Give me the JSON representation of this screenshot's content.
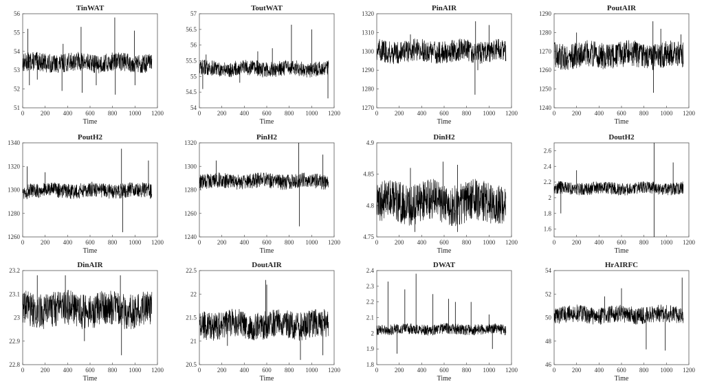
{
  "chart_data": [
    {
      "type": "line",
      "title": "TinWAT",
      "xlabel": "Time",
      "xlim": [
        0,
        1200
      ],
      "ylim": [
        51,
        56
      ],
      "xticks": [
        "0",
        "200",
        "400",
        "600",
        "800",
        "1000",
        "1200"
      ],
      "yticks": [
        "51",
        "52",
        "53",
        "54",
        "55",
        "56"
      ],
      "series": [
        {
          "base": 53.5,
          "x_end": 1150,
          "band_low": 52.9,
          "band_high": 53.9,
          "spikes": [
            [
              45,
              55.2
            ],
            [
              60,
              52.2
            ],
            [
              130,
              52.5
            ],
            [
              350,
              51.9
            ],
            [
              360,
              54.4
            ],
            [
              520,
              55.3
            ],
            [
              530,
              51.8
            ],
            [
              655,
              52.2
            ],
            [
              820,
              55.8
            ],
            [
              825,
              51.7
            ],
            [
              995,
              55.1
            ],
            [
              1000,
              52.2
            ]
          ]
        }
      ]
    },
    {
      "type": "line",
      "title": "ToutWAT",
      "xlabel": "Time",
      "xlim": [
        0,
        1200
      ],
      "ylim": [
        54,
        57
      ],
      "xticks": [
        "0",
        "200",
        "400",
        "600",
        "800",
        "1000",
        "1200"
      ],
      "yticks": [
        "54",
        "54.5",
        "55",
        "55.5",
        "56",
        "56.5",
        "57"
      ],
      "series": [
        {
          "base": 55.25,
          "x_end": 1150,
          "band_low": 55.0,
          "band_high": 55.5,
          "spikes": [
            [
              30,
              54.6
            ],
            [
              60,
              55.7
            ],
            [
              360,
              54.8
            ],
            [
              520,
              55.8
            ],
            [
              650,
              55.9
            ],
            [
              820,
              56.65
            ],
            [
              1000,
              56.5
            ],
            [
              1145,
              54.3
            ]
          ]
        }
      ]
    },
    {
      "type": "line",
      "title": "PinAIR",
      "xlabel": "Time",
      "xlim": [
        0,
        1200
      ],
      "ylim": [
        1270,
        1320
      ],
      "xticks": [
        "0",
        "200",
        "400",
        "600",
        "800",
        "1000",
        "1200"
      ],
      "yticks": [
        "1270",
        "1280",
        "1290",
        "1300",
        "1310",
        "1320"
      ],
      "series": [
        {
          "base": 1300,
          "x_end": 1150,
          "band_low": 1294,
          "band_high": 1306,
          "spikes": [
            [
              880,
              1316
            ],
            [
              875,
              1277
            ],
            [
              1000,
              1314
            ],
            [
              300,
              1309
            ],
            [
              900,
              1290
            ]
          ]
        }
      ]
    },
    {
      "type": "line",
      "title": "PoutAIR",
      "xlabel": "Time",
      "xlim": [
        0,
        1200
      ],
      "ylim": [
        1240,
        1290
      ],
      "xticks": [
        "0",
        "200",
        "400",
        "600",
        "800",
        "1000",
        "1200"
      ],
      "yticks": [
        "1240",
        "1250",
        "1260",
        "1270",
        "1280",
        "1290"
      ],
      "series": [
        {
          "base": 1268,
          "x_end": 1150,
          "band_low": 1261,
          "band_high": 1275,
          "spikes": [
            [
              880,
              1286
            ],
            [
              885,
              1248
            ],
            [
              950,
              1282
            ],
            [
              200,
              1280
            ],
            [
              1130,
              1279
            ]
          ]
        }
      ]
    },
    {
      "type": "line",
      "title": "PoutH2",
      "xlabel": "Time",
      "xlim": [
        0,
        1200
      ],
      "ylim": [
        1260,
        1340
      ],
      "xticks": [
        "0",
        "200",
        "400",
        "600",
        "800",
        "1000",
        "1200"
      ],
      "yticks": [
        "1260",
        "1280",
        "1300",
        "1320",
        "1340"
      ],
      "series": [
        {
          "base": 1300,
          "x_end": 1150,
          "band_low": 1293,
          "band_high": 1306,
          "spikes": [
            [
              880,
              1335
            ],
            [
              890,
              1264
            ],
            [
              40,
              1320
            ],
            [
              1120,
              1325
            ],
            [
              200,
              1315
            ]
          ]
        }
      ]
    },
    {
      "type": "line",
      "title": "PinH2",
      "xlabel": "Time",
      "xlim": [
        0,
        1200
      ],
      "ylim": [
        1240,
        1320
      ],
      "xticks": [
        "0",
        "200",
        "400",
        "600",
        "800",
        "1000",
        "1200"
      ],
      "yticks": [
        "1240",
        "1260",
        "1280",
        "1300",
        "1320"
      ],
      "series": [
        {
          "base": 1287,
          "x_end": 1150,
          "band_low": 1281,
          "band_high": 1294,
          "spikes": [
            [
              885,
              1320
            ],
            [
              890,
              1249
            ],
            [
              150,
              1305
            ],
            [
              1100,
              1310
            ]
          ]
        }
      ]
    },
    {
      "type": "line",
      "title": "DinH2",
      "xlabel": "Time",
      "xlim": [
        0,
        1200
      ],
      "ylim": [
        4.75,
        4.9
      ],
      "xticks": [
        "0",
        "200",
        "400",
        "600",
        "800",
        "1000",
        "1200"
      ],
      "yticks": [
        "4.75",
        "4.8",
        "4.85",
        "4.9"
      ],
      "series": [
        {
          "base": 4.8,
          "x_end": 1150,
          "band_low": 4.772,
          "band_high": 4.838,
          "spikes": [
            [
              300,
              4.86
            ],
            [
              590,
              4.87
            ],
            [
              720,
              4.865
            ],
            [
              340,
              4.758
            ],
            [
              720,
              4.758
            ]
          ]
        }
      ]
    },
    {
      "type": "line",
      "title": "DoutH2",
      "xlabel": "Time",
      "xlim": [
        0,
        1200
      ],
      "ylim": [
        1.5,
        2.7
      ],
      "xticks": [
        "0",
        "200",
        "400",
        "600",
        "800",
        "1000",
        "1200"
      ],
      "yticks": [
        "1.6",
        "1.8",
        "2",
        "2.2",
        "2.4",
        "2.6"
      ],
      "series": [
        {
          "base": 2.12,
          "x_end": 1150,
          "band_low": 2.04,
          "band_high": 2.2,
          "spikes": [
            [
              890,
              2.7
            ],
            [
              890,
              1.5
            ],
            [
              60,
              1.8
            ],
            [
              200,
              2.35
            ],
            [
              1060,
              2.45
            ]
          ]
        }
      ]
    },
    {
      "type": "line",
      "title": "DinAIR",
      "xlabel": "Time",
      "xlim": [
        0,
        1200
      ],
      "ylim": [
        22.8,
        23.2
      ],
      "xticks": [
        "0",
        "200",
        "400",
        "600",
        "800",
        "1000",
        "1200"
      ],
      "yticks": [
        "22.8",
        "22.9",
        "23",
        "23.1",
        "23.2"
      ],
      "series": [
        {
          "base": 23.0,
          "x_end": 1150,
          "band_low": 22.96,
          "band_high": 23.11,
          "spikes": [
            [
              130,
              23.18
            ],
            [
              380,
              23.18
            ],
            [
              870,
              23.18
            ],
            [
              880,
              22.84
            ],
            [
              550,
              22.9
            ]
          ]
        }
      ]
    },
    {
      "type": "line",
      "title": "DoutAIR",
      "xlabel": "Time",
      "xlim": [
        0,
        1200
      ],
      "ylim": [
        20.5,
        22.5
      ],
      "xticks": [
        "0",
        "200",
        "400",
        "600",
        "800",
        "1000",
        "1200"
      ],
      "yticks": [
        "20.5",
        "21",
        "21.5",
        "22",
        "22.5"
      ],
      "series": [
        {
          "base": 21.35,
          "x_end": 1150,
          "band_low": 21.05,
          "band_high": 21.65,
          "spikes": [
            [
              590,
              22.3
            ],
            [
              600,
              22.2
            ],
            [
              900,
              20.6
            ],
            [
              1100,
              20.7
            ],
            [
              250,
              20.9
            ]
          ]
        }
      ]
    },
    {
      "type": "line",
      "title": "DWAT",
      "xlabel": "Time",
      "xlim": [
        0,
        1200
      ],
      "ylim": [
        1.8,
        2.4
      ],
      "xticks": [
        "0",
        "200",
        "400",
        "600",
        "800",
        "1000",
        "1200"
      ],
      "yticks": [
        "1.8",
        "1.9",
        "2",
        "2.1",
        "2.2",
        "2.3",
        "2.4"
      ],
      "series": [
        {
          "base": 2.02,
          "x_end": 1150,
          "band_low": 1.99,
          "band_high": 2.06,
          "spikes": [
            [
              100,
              2.33
            ],
            [
              250,
              2.28
            ],
            [
              350,
              2.38
            ],
            [
              500,
              2.25
            ],
            [
              640,
              2.22
            ],
            [
              700,
              2.2
            ],
            [
              840,
              2.2
            ],
            [
              1000,
              2.12
            ],
            [
              1030,
              1.9
            ],
            [
              180,
              1.87
            ]
          ]
        }
      ]
    },
    {
      "type": "line",
      "title": "HrAIRFC",
      "xlabel": "Time",
      "xlim": [
        0,
        1200
      ],
      "ylim": [
        46,
        54
      ],
      "xticks": [
        "0",
        "200",
        "400",
        "600",
        "800",
        "1000",
        "1200"
      ],
      "yticks": [
        "46",
        "48",
        "50",
        "52",
        "54"
      ],
      "series": [
        {
          "base": 50.2,
          "x_end": 1150,
          "band_low": 49.5,
          "band_high": 51.0,
          "spikes": [
            [
              600,
              52.5
            ],
            [
              820,
              47.3
            ],
            [
              990,
              47.2
            ],
            [
              1140,
              53.4
            ],
            [
              450,
              51.8
            ]
          ]
        }
      ]
    }
  ]
}
